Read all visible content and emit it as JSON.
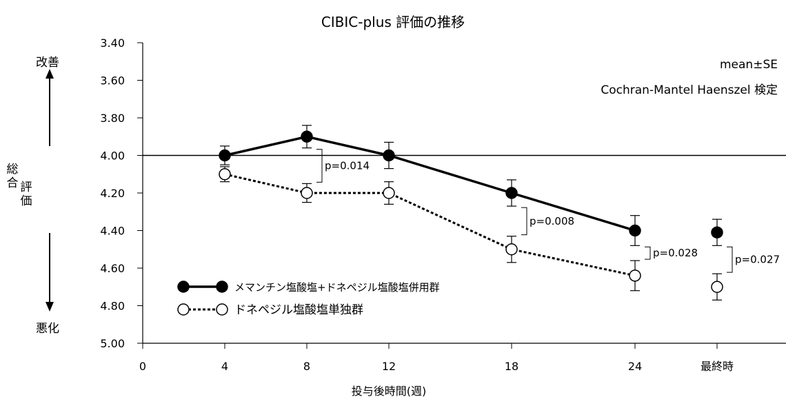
{
  "chart_data": {
    "type": "line",
    "title": "CIBIC-plus 評価の推移",
    "xlabel": "投与後時間(週)",
    "ylabel": "総合評価",
    "ylabel_top": "改善",
    "ylabel_bottom": "悪化",
    "ylim": [
      3.4,
      5.0
    ],
    "y_inverted": true,
    "y_ticks": [
      "3.40",
      "3.60",
      "3.80",
      "4.00",
      "4.20",
      "4.40",
      "4.60",
      "4.80",
      "5.00"
    ],
    "x_ticks": [
      "0",
      "4",
      "8",
      "12",
      "18",
      "24",
      "最終時"
    ],
    "reference_line": 4.0,
    "annotations": [
      "mean±SE",
      "Cochran-Mantel Haenszel 検定"
    ],
    "series": [
      {
        "name": "メマンチン塩酸塩+ドネペジル塩酸塩併用群",
        "marker": "filled-circle",
        "line": "solid",
        "x": [
          "4",
          "8",
          "12",
          "18",
          "24",
          "最終時"
        ],
        "values": [
          4.0,
          3.9,
          4.0,
          4.2,
          4.4,
          4.41
        ],
        "se": [
          0.05,
          0.06,
          0.07,
          0.07,
          0.08,
          0.07
        ],
        "connected_to": "24"
      },
      {
        "name": "ドネペジル塩酸塩単独群",
        "marker": "open-circle",
        "line": "dotted",
        "x": [
          "4",
          "8",
          "12",
          "18",
          "24",
          "最終時"
        ],
        "values": [
          4.1,
          4.2,
          4.2,
          4.5,
          4.64,
          4.7
        ],
        "se": [
          0.04,
          0.05,
          0.06,
          0.07,
          0.08,
          0.07
        ],
        "connected_to": "24"
      }
    ],
    "pvalues": [
      {
        "x": "8",
        "label": "p=0.014"
      },
      {
        "x": "18",
        "label": "p=0.008"
      },
      {
        "x": "24",
        "label": "p=0.028"
      },
      {
        "x": "最終時",
        "label": "p=0.027"
      }
    ]
  }
}
